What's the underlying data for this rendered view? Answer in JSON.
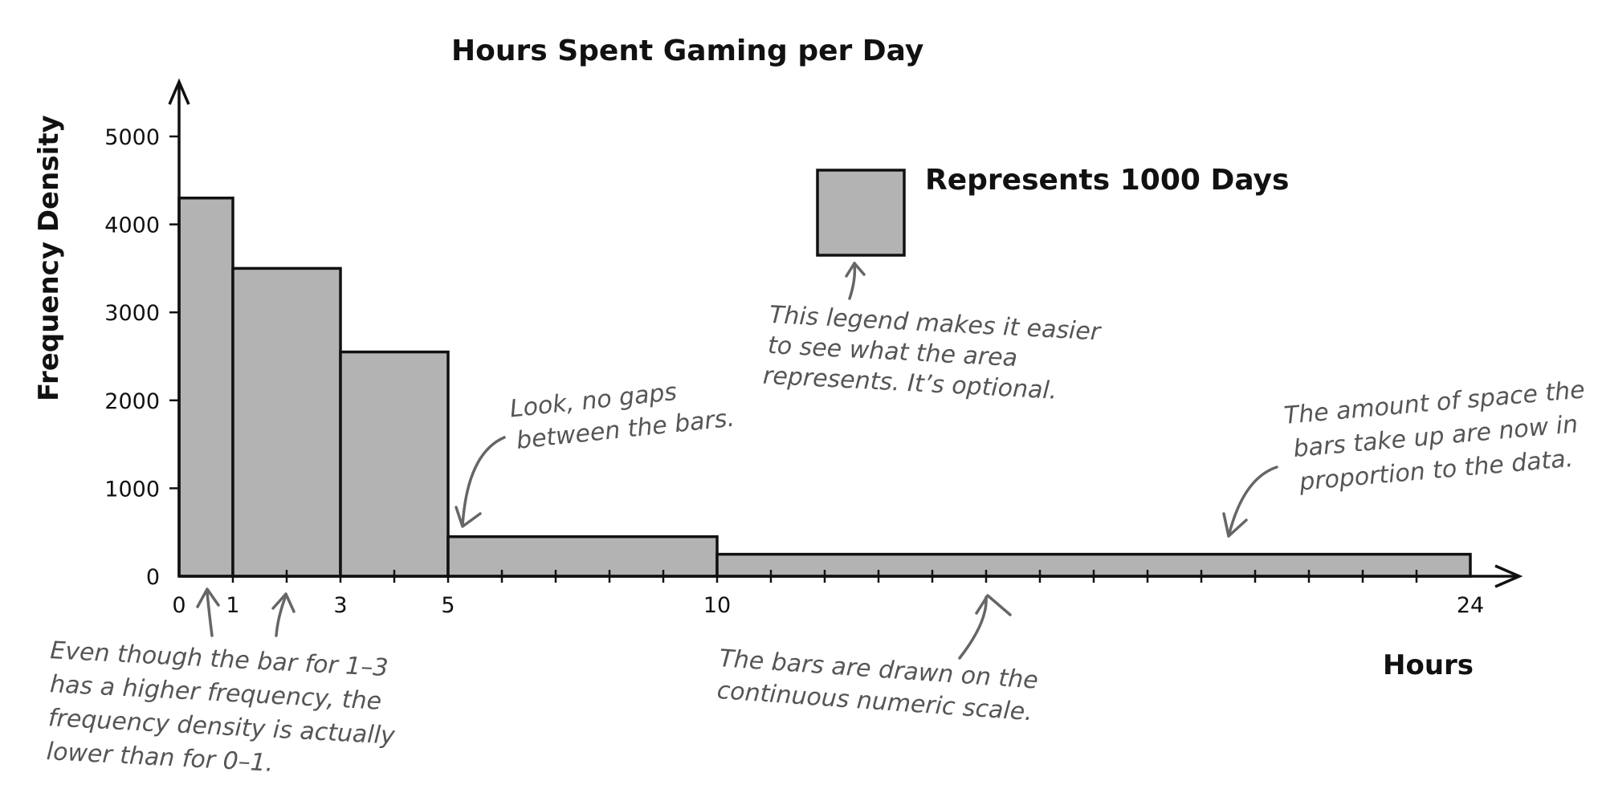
{
  "chart_data": {
    "type": "bar",
    "title": "Hours Spent Gaming per Day",
    "xlabel": "Hours",
    "ylabel": "Frequency Density",
    "xlim": [
      0,
      24
    ],
    "ylim": [
      0,
      5000
    ],
    "x_tick_labels": [
      "0",
      "1",
      "3",
      "5",
      "10",
      "24"
    ],
    "y_tick_labels": [
      "0",
      "1000",
      "2000",
      "3000",
      "4000",
      "5000"
    ],
    "bins": [
      {
        "start": 0,
        "end": 1,
        "value": 4300
      },
      {
        "start": 1,
        "end": 3,
        "value": 3500
      },
      {
        "start": 3,
        "end": 5,
        "value": 2550
      },
      {
        "start": 5,
        "end": 10,
        "value": 450
      },
      {
        "start": 10,
        "end": 24,
        "value": 250
      }
    ],
    "grid": false,
    "legend": {
      "label": "Represents 1000 Days",
      "position": "top-right"
    },
    "colors": {
      "bar_fill": "#b3b3b3",
      "bar_stroke": "#111111",
      "annotation": "#555555"
    },
    "annotations": [
      {
        "name": "note-legend",
        "lines": [
          "This legend makes it easier",
          "to see what the area",
          "represents. It’s optional."
        ]
      },
      {
        "name": "note-no-gaps",
        "lines": [
          "Look, no gaps",
          "between the bars."
        ]
      },
      {
        "name": "note-proportion",
        "lines": [
          "The amount of space the",
          "bars take up are now in",
          "proportion to the data."
        ]
      },
      {
        "name": "note-continuous",
        "lines": [
          "The bars are drawn on the",
          "continuous numeric scale."
        ]
      },
      {
        "name": "note-density",
        "lines": [
          "Even though the bar for 1–3",
          "has a higher frequency, the",
          "frequency density is actually",
          "lower than for 0–1."
        ]
      }
    ]
  }
}
